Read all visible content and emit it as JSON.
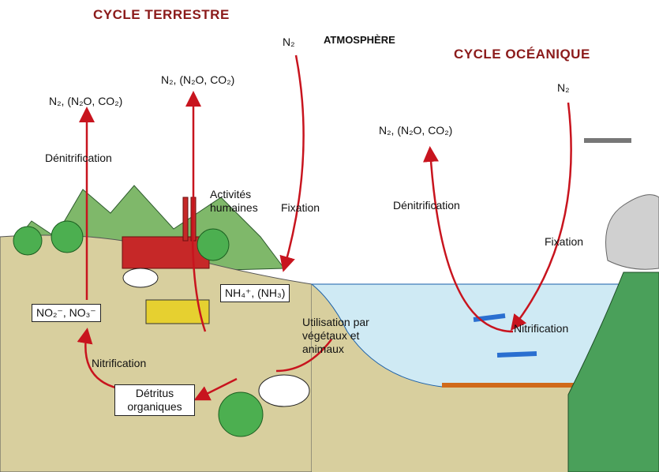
{
  "headers": {
    "terrestrial": "CYCLE TERRESTRE",
    "atmosphere": "ATMOSPHÈRE",
    "oceanic": "CYCLE OCÉANIQUE"
  },
  "compounds": {
    "n2_fixation_land": "N₂",
    "gases_land_left": "N₂, (N₂O, CO₂)",
    "gases_land_human": "N₂, (N₂O, CO₂)",
    "gases_ocean": "N₂, (N₂O, CO₂)",
    "n2_ocean": "N₂",
    "ammonium": "NH₄⁺, (NH₃)",
    "nitrite_nitrate": "NO₂⁻, NO₃⁻",
    "detritus": "Détritus organiques"
  },
  "processes": {
    "denitrification_land": "Dénitrification",
    "human_activities": "Activités humaines",
    "fixation_land": "Fixation",
    "utilisation": "Utilisation par végétaux et animaux",
    "nitrification_land": "Nitrification",
    "denitrification_ocean": "Dénitrification",
    "fixation_ocean": "Fixation",
    "nitrification_ocean": "Nitrification"
  }
}
